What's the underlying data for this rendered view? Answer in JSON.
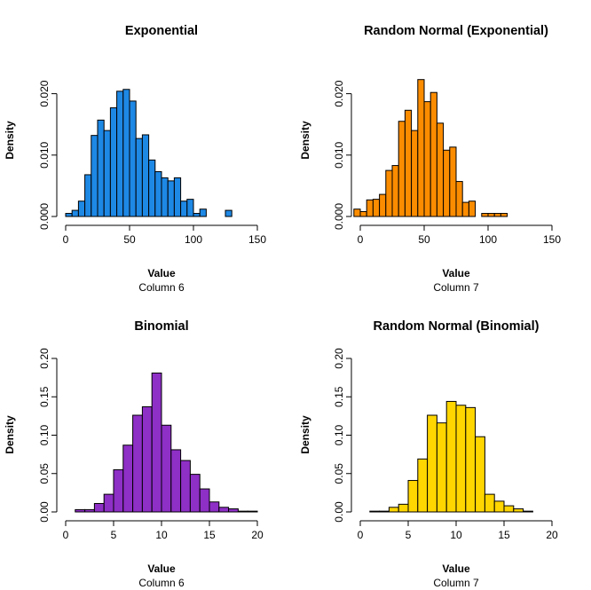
{
  "chart_data": [
    {
      "type": "bar",
      "title": "Exponential",
      "xlabel": "Value",
      "sub": "Column 6",
      "ylabel": "Density",
      "color": "#1E88E5",
      "xlim": [
        0,
        150
      ],
      "ylim": [
        0,
        0.025
      ],
      "xticks": [
        0,
        50,
        100,
        150
      ],
      "yticks": [
        0.0,
        0.01,
        0.02
      ],
      "ytick_labels": [
        "0.000",
        "0.010",
        "0.020"
      ],
      "bin_width": 5,
      "bins_start": [
        0,
        5,
        10,
        15,
        20,
        25,
        30,
        35,
        40,
        45,
        50,
        55,
        60,
        65,
        70,
        75,
        80,
        85,
        90,
        95,
        100,
        105,
        110,
        115,
        120,
        125
      ],
      "values": [
        0.0005,
        0.001,
        0.0025,
        0.0068,
        0.0132,
        0.0157,
        0.014,
        0.0177,
        0.0204,
        0.0207,
        0.0188,
        0.0127,
        0.0133,
        0.0092,
        0.0073,
        0.0063,
        0.0058,
        0.0063,
        0.0025,
        0.0028,
        0.0005,
        0.0012,
        0.0,
        0.0,
        0.0,
        0.001
      ]
    },
    {
      "type": "bar",
      "title": "Random Normal (Exponential)",
      "xlabel": "Value",
      "sub": "Column 7",
      "ylabel": "Density",
      "color": "#FB8C00",
      "xlim": [
        0,
        150
      ],
      "ylim": [
        0,
        0.025
      ],
      "xticks": [
        0,
        50,
        100,
        150
      ],
      "yticks": [
        0.0,
        0.01,
        0.02
      ],
      "ytick_labels": [
        "0.000",
        "0.010",
        "0.020"
      ],
      "bin_width": 5,
      "bins_start": [
        -5,
        0,
        5,
        10,
        15,
        20,
        25,
        30,
        35,
        40,
        45,
        50,
        55,
        60,
        65,
        70,
        75,
        80,
        85,
        90,
        95,
        100,
        105,
        110,
        115
      ],
      "values": [
        0.0012,
        0.0008,
        0.0027,
        0.0028,
        0.0036,
        0.0075,
        0.0083,
        0.0155,
        0.0173,
        0.014,
        0.0223,
        0.0187,
        0.0202,
        0.0152,
        0.0108,
        0.0113,
        0.0057,
        0.0023,
        0.0025,
        0.0,
        0.0005,
        0.0005,
        0.0005,
        0.0005,
        0.0
      ]
    },
    {
      "type": "bar",
      "title": "Binomial",
      "xlabel": "Value",
      "sub": "Column 6",
      "ylabel": "Density",
      "color": "#8E2FC6",
      "xlim": [
        0,
        20
      ],
      "ylim": [
        0,
        0.2
      ],
      "xticks": [
        0,
        5,
        10,
        15,
        20
      ],
      "yticks": [
        0.0,
        0.05,
        0.1,
        0.15,
        0.2
      ],
      "ytick_labels": [
        "0.00",
        "0.05",
        "0.10",
        "0.15",
        "0.20"
      ],
      "bin_width": 1,
      "bins_start": [
        1,
        2,
        3,
        4,
        5,
        6,
        7,
        8,
        9,
        10,
        11,
        12,
        13,
        14,
        15,
        16,
        17,
        18,
        19
      ],
      "values": [
        0.003,
        0.003,
        0.011,
        0.023,
        0.055,
        0.087,
        0.126,
        0.137,
        0.181,
        0.113,
        0.081,
        0.067,
        0.049,
        0.03,
        0.013,
        0.006,
        0.004,
        0.001,
        0.001
      ]
    },
    {
      "type": "bar",
      "title": "Random Normal (Binomial)",
      "xlabel": "Value",
      "sub": "Column 7",
      "ylabel": "Density",
      "color": "#FFD600",
      "xlim": [
        0,
        20
      ],
      "ylim": [
        0,
        0.2
      ],
      "xticks": [
        0,
        5,
        10,
        15,
        20
      ],
      "yticks": [
        0.0,
        0.05,
        0.1,
        0.15,
        0.2
      ],
      "ytick_labels": [
        "0.00",
        "0.05",
        "0.10",
        "0.15",
        "0.20"
      ],
      "bin_width": 1,
      "bins_start": [
        1,
        2,
        3,
        4,
        5,
        6,
        7,
        8,
        9,
        10,
        11,
        12,
        13,
        14,
        15,
        16,
        17,
        18
      ],
      "values": [
        0.001,
        0.001,
        0.006,
        0.01,
        0.041,
        0.069,
        0.126,
        0.116,
        0.144,
        0.139,
        0.136,
        0.098,
        0.023,
        0.014,
        0.008,
        0.004,
        0.001,
        0.0
      ]
    }
  ]
}
